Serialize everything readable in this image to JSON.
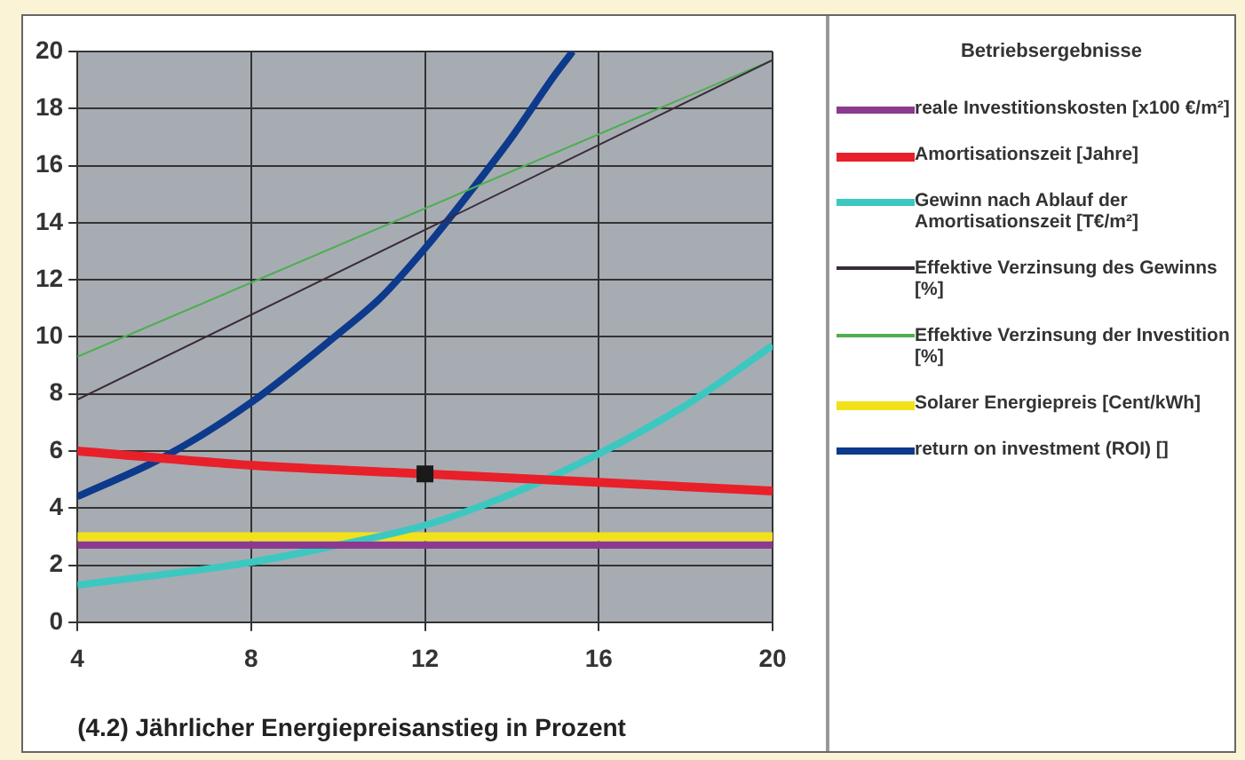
{
  "chart_data": {
    "type": "line",
    "xlabel": "(4.2) Jährlicher Energiepreisanstieg in Prozent",
    "legend_title": "Betriebsergebnisse",
    "legend": "right",
    "grid": true,
    "marker": "none",
    "xlim": [
      4,
      20
    ],
    "xticks": [
      4,
      8,
      12,
      16,
      20
    ],
    "ylim": [
      0,
      20
    ],
    "yticks": [
      0,
      2,
      4,
      6,
      8,
      10,
      12,
      14,
      16,
      18,
      20
    ],
    "series": [
      {
        "name": "reale Investitionskosten [x100 €/m²]",
        "color": "#8b3a8f",
        "x": [
          4,
          20
        ],
        "values": [
          2.7,
          2.7
        ]
      },
      {
        "name": "Amortisationszeit [Jahre]",
        "color": "#e8202a",
        "x": [
          4,
          8,
          12,
          16,
          20
        ],
        "values": [
          6.0,
          5.5,
          5.2,
          4.9,
          4.6
        ]
      },
      {
        "name": "Gewinn nach Ablauf der Amortisationszeit [T€/m²]",
        "color": "#3cc8c0",
        "x": [
          4,
          8,
          10,
          12,
          14,
          16,
          18,
          20
        ],
        "values": [
          1.3,
          2.1,
          2.7,
          3.4,
          4.5,
          5.9,
          7.6,
          9.7
        ]
      },
      {
        "name": "Effektive Verzinsung des Gewinns [%]",
        "color": "#3a2a3a",
        "x": [
          4,
          20
        ],
        "values": [
          7.8,
          19.7
        ]
      },
      {
        "name": "Effektive Verzinsung der Investition [%]",
        "color": "#4caf50",
        "x": [
          4,
          20
        ],
        "values": [
          9.3,
          19.7
        ]
      },
      {
        "name": "Solarer Energiepreis [Cent/kWh]",
        "color": "#f2e11a",
        "x": [
          4,
          20
        ],
        "values": [
          3.0,
          3.0
        ]
      },
      {
        "name": "return on investment (ROI) []",
        "color": "#0d3a8c",
        "x": [
          4,
          6,
          8,
          10,
          11,
          12,
          13,
          14,
          15,
          15.4
        ],
        "values": [
          4.4,
          5.8,
          7.7,
          10.1,
          11.4,
          13.1,
          15.0,
          17.0,
          19.2,
          20
        ]
      },
      {
        "type": "scatter",
        "marker": "square",
        "color": "#1a1a1a",
        "x": [
          12
        ],
        "values": [
          5.2
        ]
      }
    ]
  }
}
